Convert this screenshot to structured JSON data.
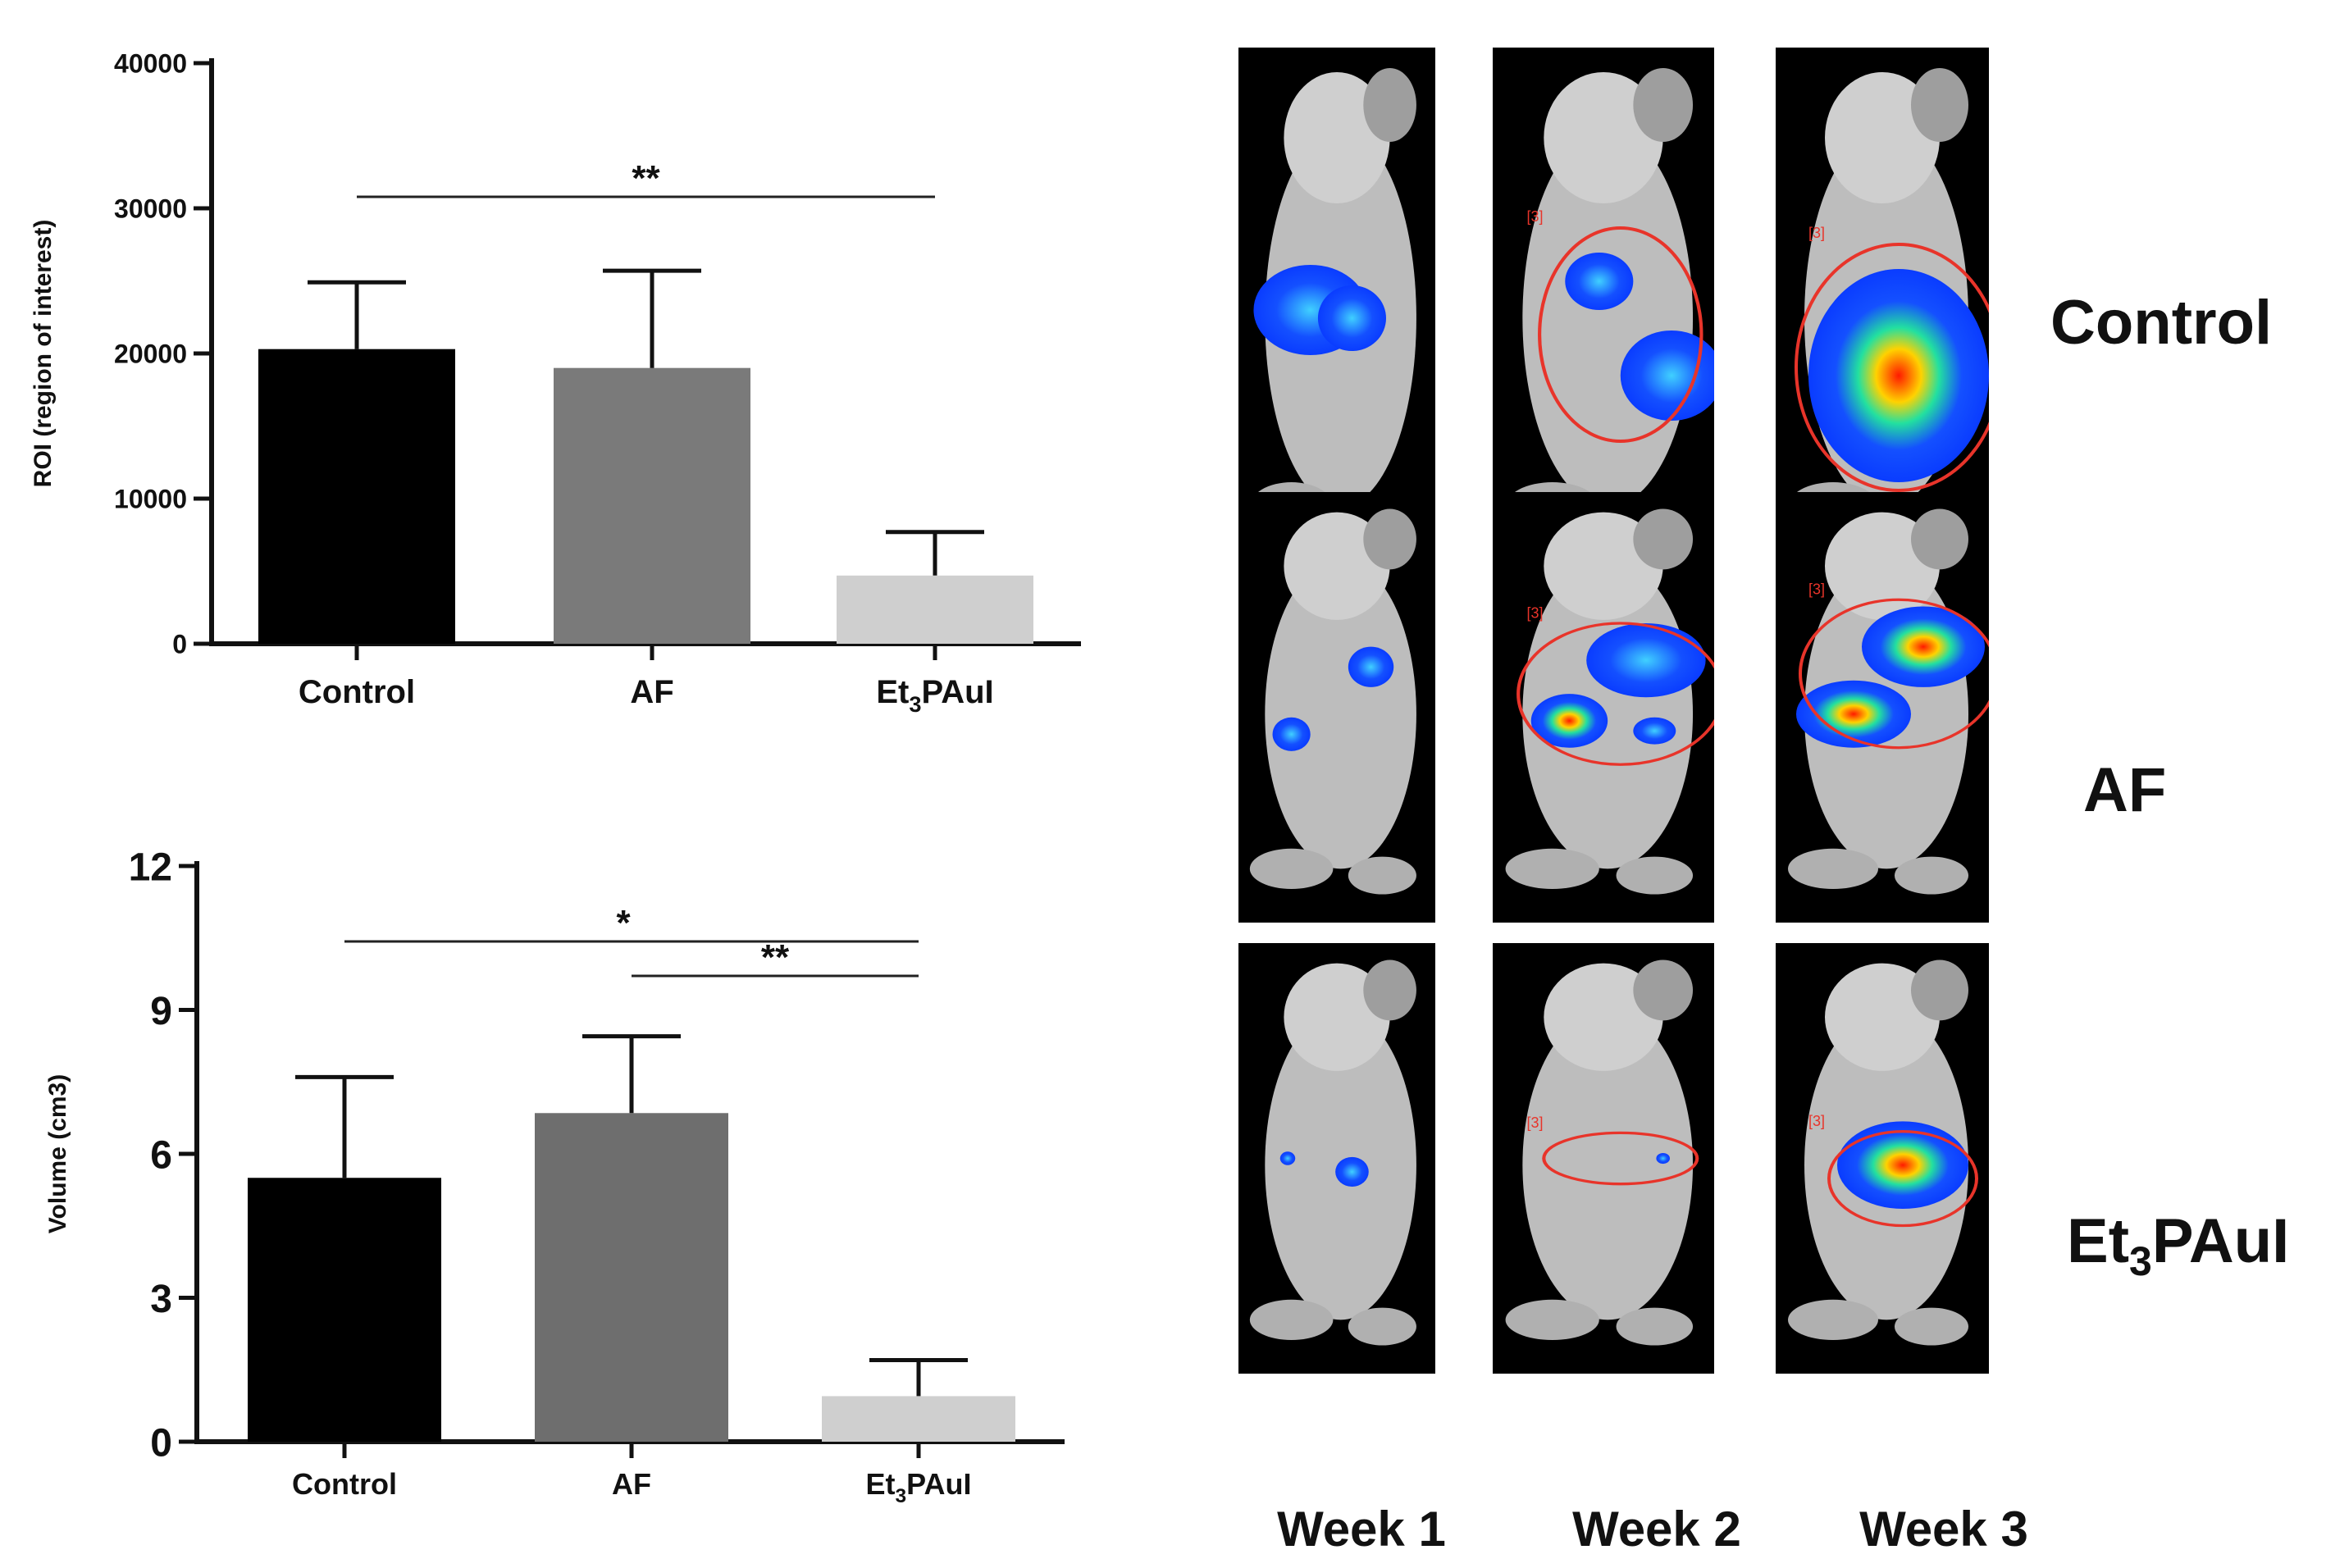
{
  "chart_data": [
    {
      "type": "bar",
      "categories": [
        "Control",
        "AF",
        "Et3PAuI"
      ],
      "values": [
        20300,
        19000,
        4700
      ],
      "error": [
        4600,
        6700,
        3000
      ],
      "colors": [
        "#000000",
        "#7a7a7a",
        "#cfcfcf"
      ],
      "ylabel": "ROI (region of interest)",
      "xlabel": "",
      "ylim": [
        0,
        40000
      ],
      "yticks": [
        "0",
        "10000",
        "20000",
        "30000",
        "40000"
      ],
      "significance": [
        {
          "from": 0,
          "to": 2,
          "label": "**"
        }
      ],
      "grid": false
    },
    {
      "type": "bar",
      "categories": [
        "Control",
        "AF",
        "Et3PAuI"
      ],
      "values": [
        5.5,
        6.85,
        0.95
      ],
      "error": [
        2.1,
        1.6,
        0.75
      ],
      "colors": [
        "#000000",
        "#6e6e6e",
        "#cfcfcf"
      ],
      "ylabel": "Volume (cm3)",
      "xlabel": "",
      "ylim": [
        0,
        12
      ],
      "yticks": [
        "0",
        "3",
        "6",
        "9",
        "12"
      ],
      "significance": [
        {
          "from": 0,
          "to": 2,
          "label": "*"
        },
        {
          "from": 1,
          "to": 2,
          "label": "**"
        }
      ],
      "grid": false
    }
  ],
  "imaging": {
    "rows": [
      "Control",
      "AF",
      "Et3PAuI"
    ],
    "columns": [
      "Week 1",
      "Week 2",
      "Week 3"
    ],
    "roi_tag": "[3]"
  }
}
